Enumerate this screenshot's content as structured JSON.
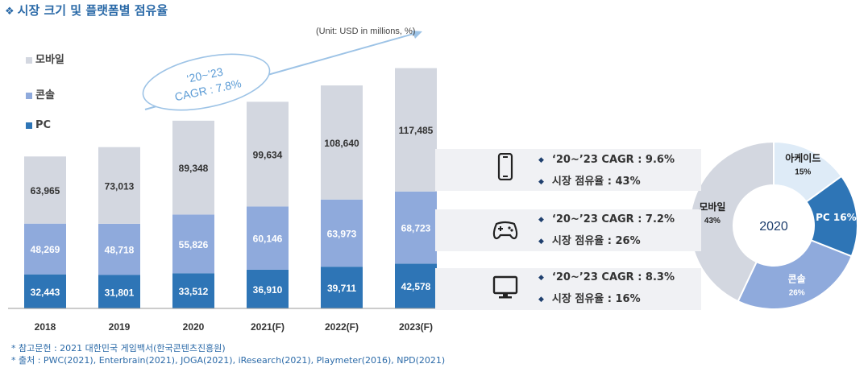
{
  "header": {
    "title": "시장 크기 및 플랫폼별 점유율",
    "unit": "(Unit: USD in millions, %)"
  },
  "legend": [
    {
      "label": "모바일",
      "color": "#d3d7e0"
    },
    {
      "label": "콘솔",
      "color": "#8faadc"
    },
    {
      "label": "PC",
      "color": "#2e75b6"
    }
  ],
  "cagr_callout": {
    "line1": "‘20~’23",
    "line2": "CAGR : 7.8%"
  },
  "chart_data": [
    {
      "type": "bar",
      "stacked": true,
      "categories": [
        "2018",
        "2019",
        "2020",
        "2021(F)",
        "2022(F)",
        "2023(F)"
      ],
      "series": [
        {
          "name": "PC",
          "color": "#2e75b6",
          "values": [
            32443,
            31801,
            33512,
            36910,
            39711,
            42578
          ],
          "labels": [
            "32,443",
            "31,801",
            "33,512",
            "36,910",
            "39,711",
            "42,578"
          ]
        },
        {
          "name": "콘솔",
          "color": "#8faadc",
          "values": [
            48269,
            48718,
            55826,
            60146,
            63973,
            68723
          ],
          "labels": [
            "48,269",
            "48,718",
            "55,826",
            "60,146",
            "63,973",
            "68,723"
          ]
        },
        {
          "name": "모바일",
          "color": "#d3d7e0",
          "values": [
            63965,
            73013,
            89348,
            99634,
            108640,
            117485
          ],
          "labels": [
            "63,965",
            "73,013",
            "89,348",
            "99,634",
            "108,640",
            "117,485"
          ]
        }
      ],
      "unit": "(Unit: USD in millions, %)"
    },
    {
      "type": "pie",
      "donut": true,
      "center_label": "2020",
      "slices": [
        {
          "name": "아케이드",
          "value": 15,
          "label": "15%",
          "color": "#deebf7"
        },
        {
          "name": "PC",
          "value": 16,
          "label": "16%",
          "color": "#2e75b6"
        },
        {
          "name": "콘솔",
          "value": 26,
          "label": "26%",
          "color": "#8faadc"
        },
        {
          "name": "모바일",
          "value": 43,
          "label": "43%",
          "color": "#d3d7e0"
        }
      ]
    }
  ],
  "kpis": [
    {
      "icon": "smartphone-icon",
      "cagr": "‘20~’23 CAGR : 9.6%",
      "share": "시장 점유율 : 43%"
    },
    {
      "icon": "gamepad-icon",
      "cagr": "‘20~’23 CAGR : 7.2%",
      "share": "시장 점유율 : 26%"
    },
    {
      "icon": "monitor-icon",
      "cagr": "‘20~’23 CAGR : 8.3%",
      "share": "시장 점유율 : 16%"
    }
  ],
  "notes": [
    "* 참고문헌 : 2021 대한민국 게임백서(한국콘텐츠진흥원)",
    "* 출처 : PWC(2021), Enterbrain(2021), JOGA(2021), iResearch(2021), Playmeter(2016), NPD(2021)"
  ]
}
